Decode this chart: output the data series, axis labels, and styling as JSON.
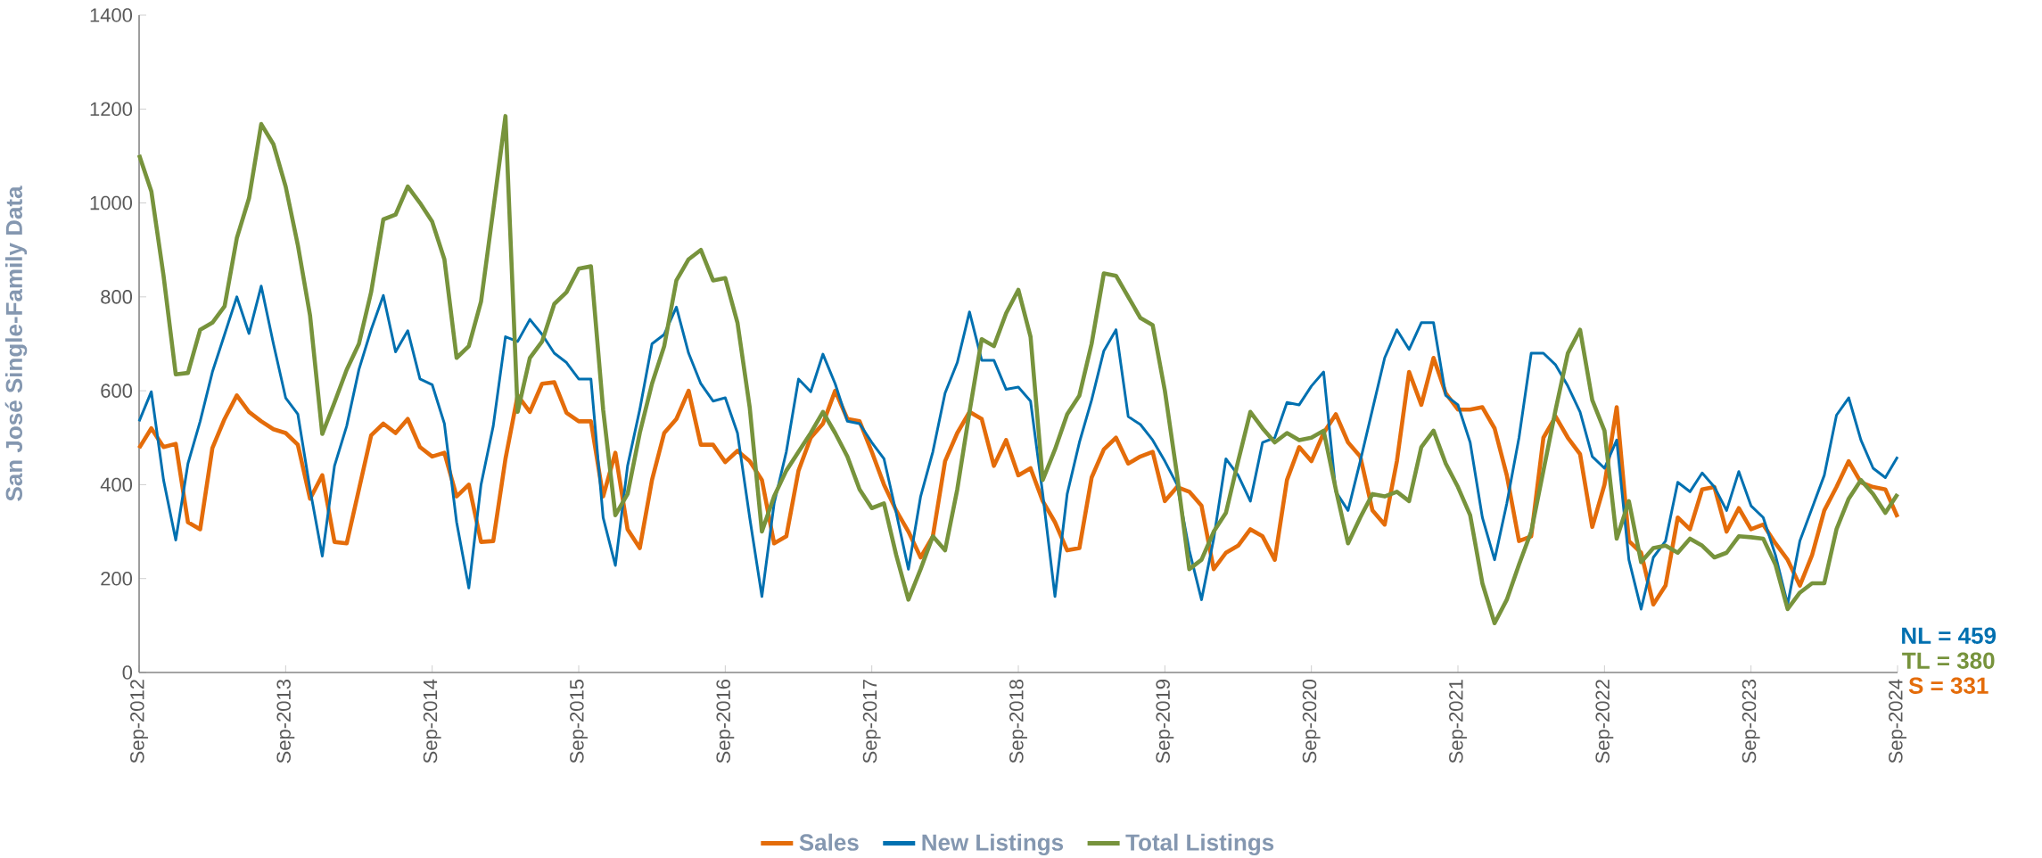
{
  "chart_data": {
    "type": "line",
    "ylabel": "San José Single-Family Data",
    "x": [
      "2012-09",
      "2012-10",
      "2012-11",
      "2012-12",
      "2013-01",
      "2013-02",
      "2013-03",
      "2013-04",
      "2013-05",
      "2013-06",
      "2013-07",
      "2013-08",
      "2013-09",
      "2013-10",
      "2013-11",
      "2013-12",
      "2014-01",
      "2014-02",
      "2014-03",
      "2014-04",
      "2014-05",
      "2014-06",
      "2014-07",
      "2014-08",
      "2014-09",
      "2014-10",
      "2014-11",
      "2014-12",
      "2015-01",
      "2015-02",
      "2015-03",
      "2015-04",
      "2015-05",
      "2015-06",
      "2015-07",
      "2015-08",
      "2015-09",
      "2015-10",
      "2015-11",
      "2015-12",
      "2016-01",
      "2016-02",
      "2016-03",
      "2016-04",
      "2016-05",
      "2016-06",
      "2016-07",
      "2016-08",
      "2016-09",
      "2016-10",
      "2016-11",
      "2016-12",
      "2017-01",
      "2017-02",
      "2017-03",
      "2017-04",
      "2017-05",
      "2017-06",
      "2017-07",
      "2017-08",
      "2017-09",
      "2017-10",
      "2017-11",
      "2017-12",
      "2018-01",
      "2018-02",
      "2018-03",
      "2018-04",
      "2018-05",
      "2018-06",
      "2018-07",
      "2018-08",
      "2018-09",
      "2018-10",
      "2018-11",
      "2018-12",
      "2019-01",
      "2019-02",
      "2019-03",
      "2019-04",
      "2019-05",
      "2019-06",
      "2019-07",
      "2019-08",
      "2019-09",
      "2019-10",
      "2019-11",
      "2019-12",
      "2020-01",
      "2020-02",
      "2020-03",
      "2020-04",
      "2020-05",
      "2020-06",
      "2020-07",
      "2020-08",
      "2020-09",
      "2020-10",
      "2020-11",
      "2020-12",
      "2021-01",
      "2021-02",
      "2021-03",
      "2021-04",
      "2021-05",
      "2021-06",
      "2021-07",
      "2021-08",
      "2021-09",
      "2021-10",
      "2021-11",
      "2021-12",
      "2022-01",
      "2022-02",
      "2022-03",
      "2022-04",
      "2022-05",
      "2022-06",
      "2022-07",
      "2022-08",
      "2022-09",
      "2022-10",
      "2022-11",
      "2022-12",
      "2023-01",
      "2023-02",
      "2023-03",
      "2023-04",
      "2023-05",
      "2023-06",
      "2023-07",
      "2023-08",
      "2023-09",
      "2023-10",
      "2023-11",
      "2023-12",
      "2024-01",
      "2024-02",
      "2024-03",
      "2024-04",
      "2024-05",
      "2024-06",
      "2024-07",
      "2024-08",
      "2024-09"
    ],
    "series": [
      {
        "name": "Sales",
        "color": "#e46c0a",
        "values": [
          478,
          520,
          480,
          487,
          320,
          305,
          478,
          540,
          590,
          555,
          535,
          518,
          510,
          485,
          370,
          420,
          278,
          275,
          390,
          505,
          530,
          510,
          540,
          480,
          460,
          468,
          375,
          400,
          278,
          280,
          455,
          590,
          555,
          615,
          618,
          553,
          535,
          535,
          375,
          468,
          305,
          265,
          410,
          510,
          540,
          600,
          485,
          485,
          448,
          472,
          450,
          410,
          275,
          290,
          430,
          500,
          530,
          600,
          540,
          535,
          470,
          400,
          345,
          300,
          245,
          290,
          450,
          510,
          555,
          540,
          440,
          495,
          420,
          435,
          365,
          320,
          260,
          265,
          415,
          475,
          500,
          445,
          460,
          470,
          365,
          395,
          385,
          355,
          220,
          255,
          270,
          305,
          290,
          240,
          410,
          480,
          450,
          510,
          550,
          490,
          460,
          345,
          315,
          450,
          640,
          570,
          670,
          595,
          560,
          560,
          565,
          520,
          420,
          280,
          290,
          500,
          545,
          500,
          465,
          310,
          400,
          565,
          280,
          255,
          145,
          185,
          330,
          305,
          390,
          395,
          300,
          350,
          305,
          315,
          275,
          240,
          185,
          250,
          345,
          395,
          450,
          405,
          395,
          390,
          331
        ]
      },
      {
        "name": "New Listings",
        "color": "#0070b0",
        "values": [
          535,
          598,
          410,
          282,
          445,
          535,
          640,
          720,
          800,
          722,
          823,
          700,
          585,
          550,
          390,
          248,
          440,
          525,
          645,
          730,
          803,
          683,
          728,
          625,
          613,
          530,
          320,
          180,
          400,
          525,
          715,
          705,
          752,
          720,
          680,
          660,
          625,
          625,
          330,
          228,
          440,
          560,
          700,
          720,
          778,
          680,
          615,
          578,
          585,
          510,
          330,
          162,
          360,
          470,
          625,
          598,
          678,
          615,
          535,
          530,
          490,
          455,
          340,
          220,
          375,
          470,
          595,
          660,
          768,
          665,
          665,
          603,
          608,
          578,
          380,
          162,
          380,
          490,
          580,
          685,
          730,
          545,
          528,
          495,
          450,
          400,
          260,
          155,
          285,
          455,
          420,
          365,
          490,
          500,
          575,
          570,
          610,
          640,
          385,
          345,
          450,
          560,
          670,
          730,
          688,
          745,
          745,
          590,
          570,
          490,
          330,
          240,
          360,
          500,
          680,
          680,
          655,
          610,
          555,
          460,
          435,
          495,
          240,
          135,
          245,
          280,
          405,
          385,
          425,
          395,
          345,
          428,
          355,
          330,
          250,
          145,
          280,
          350,
          420,
          548,
          585,
          495,
          435,
          415,
          459
        ]
      },
      {
        "name": "Total Listings",
        "color": "#77933c",
        "values": [
          1102,
          1025,
          845,
          635,
          638,
          730,
          745,
          780,
          925,
          1010,
          1168,
          1125,
          1035,
          910,
          760,
          508,
          575,
          645,
          700,
          810,
          965,
          975,
          1035,
          1000,
          960,
          880,
          670,
          695,
          790,
          985,
          1185,
          555,
          670,
          705,
          785,
          810,
          860,
          865,
          560,
          335,
          380,
          510,
          615,
          695,
          835,
          880,
          900,
          835,
          840,
          745,
          565,
          300,
          375,
          430,
          470,
          510,
          555,
          510,
          460,
          390,
          350,
          360,
          250,
          155,
          220,
          290,
          260,
          390,
          555,
          710,
          695,
          765,
          815,
          715,
          410,
          475,
          550,
          590,
          700,
          850,
          845,
          800,
          755,
          740,
          600,
          420,
          220,
          240,
          300,
          340,
          450,
          555,
          520,
          490,
          510,
          495,
          500,
          515,
          390,
          275,
          330,
          380,
          375,
          385,
          365,
          480,
          515,
          445,
          395,
          335,
          190,
          105,
          155,
          230,
          300,
          430,
          560,
          680,
          730,
          580,
          515,
          285,
          365,
          235,
          265,
          270,
          255,
          285,
          270,
          245,
          255,
          290,
          288,
          285,
          230,
          135,
          170,
          190,
          190,
          305,
          370,
          410,
          380,
          340,
          380
        ]
      }
    ],
    "xlim": [
      "2012-09",
      "2024-09"
    ],
    "xticks": [
      {
        "value": "2012-09",
        "label": "Sep-2012"
      },
      {
        "value": "2013-09",
        "label": "Sep-2013"
      },
      {
        "value": "2014-09",
        "label": "Sep-2014"
      },
      {
        "value": "2015-09",
        "label": "Sep-2015"
      },
      {
        "value": "2016-09",
        "label": "Sep-2016"
      },
      {
        "value": "2017-09",
        "label": "Sep-2017"
      },
      {
        "value": "2018-09",
        "label": "Sep-2018"
      },
      {
        "value": "2019-09",
        "label": "Sep-2019"
      },
      {
        "value": "2020-09",
        "label": "Sep-2020"
      },
      {
        "value": "2021-09",
        "label": "Sep-2021"
      },
      {
        "value": "2022-09",
        "label": "Sep-2022"
      },
      {
        "value": "2023-09",
        "label": "Sep-2023"
      },
      {
        "value": "2024-09",
        "label": "Sep-2024"
      }
    ],
    "ylim": [
      0,
      1400
    ],
    "yticks": [
      0,
      200,
      400,
      600,
      800,
      1000,
      1200,
      1400
    ],
    "grid": false,
    "legend": "bottom",
    "marker": "none",
    "line_style": "solid",
    "annotations": [
      "NL = 459",
      "TL = 380",
      "S = 331"
    ]
  }
}
